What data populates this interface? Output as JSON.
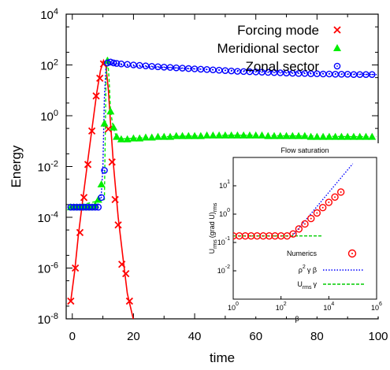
{
  "chart_data": [
    {
      "type": "line",
      "xlabel": "time",
      "ylabel": "Energy",
      "xlim": [
        -2,
        100
      ],
      "ylim": [
        1e-08,
        10000
      ],
      "yscale": "log",
      "grid": false,
      "legend_position": "top-right",
      "x_ticks": [
        "0",
        "20",
        "40",
        "60",
        "80",
        "100"
      ],
      "y_ticks": [
        "10",
        "10",
        "10",
        "10",
        "10",
        "10",
        "10"
      ],
      "y_tick_exponents": [
        "-8",
        "-6",
        "-4",
        "-2",
        "0",
        "2",
        "4"
      ],
      "series": [
        {
          "name": "Forcing mode",
          "color": "#ff0000",
          "marker": "x",
          "x": [
            -0.5,
            0.8,
            2,
            3.5,
            5,
            6.5,
            8,
            9.2,
            10.2,
            11,
            11.8,
            12.5,
            13.5,
            15,
            16.5,
            18,
            19,
            20.5
          ],
          "y": [
            5e-08,
            8e-07,
            2e-05,
            0.0006,
            0.015,
            0.35,
            8,
            60,
            150,
            90,
            10,
            0.5,
            0.01,
            0.0001,
            3e-06,
            1e-07,
            3e-08,
            5e-09
          ]
        },
        {
          "name": "Meridional sector",
          "color": "#00ee00",
          "marker": "triangle",
          "x": [
            -0.5,
            10.5,
            11,
            11.5,
            12,
            12.5,
            13.3,
            14,
            15,
            20,
            30,
            40,
            50,
            60,
            70,
            80,
            90,
            99.5
          ],
          "y": [
            0.00025,
            0.0005,
            20,
            200,
            30,
            1.5,
            0.4,
            0.2,
            0.12,
            0.13,
            0.15,
            0.16,
            0.17,
            0.17,
            0.16,
            0.16,
            0.15,
            0.15
          ]
        },
        {
          "name": "Zonal sector",
          "color": "#0000ff",
          "marker": "circle",
          "x": [
            -0.5,
            8,
            9.5,
            10,
            10.5,
            11,
            11.5,
            12,
            14,
            18,
            25,
            35,
            50,
            70,
            85,
            99.5
          ],
          "y": [
            0.00025,
            0.00025,
            0.0008,
            0.01,
            5,
            80,
            130,
            130,
            110,
            95,
            85,
            75,
            62,
            52,
            45,
            42
          ]
        }
      ],
      "markers": {
        "Forcing mode": {
          "x": [
            -0.5,
            1,
            2.5,
            3.8,
            5.1,
            6.4,
            7.8,
            9,
            10.2,
            11.8,
            13,
            14,
            15,
            16.2,
            17.5,
            18.7
          ],
          "y": [
            5e-08,
            1e-06,
            2.5e-05,
            0.0006,
            0.012,
            0.25,
            6,
            30,
            110,
            0.3,
            0.015,
            0.0005,
            5e-05,
            1.4e-06,
            6e-07,
            5e-08
          ]
        },
        "Meridional sector": {
          "x": [
            -0.5,
            0.5,
            1.5,
            2.5,
            3.5,
            4.5,
            5.5,
            6.5,
            7.5,
            8.5,
            9.5,
            10.5,
            11.5,
            12.5,
            13.5,
            14.5,
            16,
            18,
            20,
            22,
            24,
            26,
            28,
            30,
            32,
            34,
            36,
            38,
            40,
            42,
            44,
            46,
            48,
            50,
            52,
            54,
            56,
            58,
            60,
            62,
            64,
            66,
            68,
            70,
            72,
            74,
            76,
            78,
            80,
            82,
            84,
            86,
            88,
            90,
            92,
            94,
            96,
            98
          ],
          "y": [
            0.00025,
            0.00025,
            0.00025,
            0.00025,
            0.00025,
            0.00025,
            0.00025,
            0.00025,
            0.0003,
            0.0005,
            0.002,
            0.5,
            150,
            1.5,
            0.35,
            0.15,
            0.12,
            0.12,
            0.13,
            0.13,
            0.14,
            0.14,
            0.15,
            0.15,
            0.15,
            0.16,
            0.16,
            0.16,
            0.16,
            0.16,
            0.17,
            0.17,
            0.17,
            0.17,
            0.17,
            0.17,
            0.17,
            0.17,
            0.17,
            0.17,
            0.16,
            0.16,
            0.16,
            0.16,
            0.16,
            0.16,
            0.16,
            0.15,
            0.15,
            0.15,
            0.15,
            0.15,
            0.15,
            0.15,
            0.15,
            0.15,
            0.15,
            0.15
          ]
        },
        "Zonal sector": {
          "x": [
            -0.5,
            0.5,
            1.5,
            2.5,
            3.5,
            4.5,
            5.5,
            6.5,
            7.5,
            8.5,
            9.5,
            10.5,
            11.5,
            12.5,
            13.5,
            14.5,
            16,
            18,
            20,
            22,
            24,
            26,
            28,
            30,
            32,
            34,
            36,
            38,
            40,
            42,
            44,
            46,
            48,
            50,
            52,
            54,
            56,
            58,
            60,
            62,
            64,
            66,
            68,
            70,
            72,
            74,
            76,
            78,
            80,
            82,
            84,
            86,
            88,
            90,
            92,
            94,
            96,
            98
          ],
          "y": [
            0.00025,
            0.00025,
            0.00025,
            0.00025,
            0.00025,
            0.00025,
            0.00025,
            0.00025,
            0.00025,
            0.00025,
            0.0006,
            0.007,
            120,
            130,
            120,
            115,
            110,
            105,
            100,
            96,
            92,
            88,
            85,
            82,
            80,
            77,
            75,
            72,
            70,
            68,
            66,
            64,
            62,
            60,
            58,
            56,
            55,
            54,
            53,
            52,
            51,
            50,
            49,
            48,
            47,
            46,
            46,
            45,
            45,
            44,
            44,
            43,
            43,
            43,
            42,
            42,
            42,
            42
          ]
        }
      }
    },
    {
      "type": "line",
      "title": "Flow saturation",
      "xlabel": "β",
      "ylabel": "U_rms (grad U)_rms",
      "xscale": "log",
      "yscale": "log",
      "xlim": [
        1,
        1000000
      ],
      "ylim": [
        0.001,
        100
      ],
      "x_ticks": [
        "10",
        "10",
        "10",
        "10"
      ],
      "x_tick_exponents": [
        "0",
        "2",
        "4",
        "6"
      ],
      "y_ticks": [
        "10",
        "10",
        "10",
        "10"
      ],
      "y_tick_exponents": [
        "1",
        "0",
        "-1",
        "-2"
      ],
      "y_tick_values": [
        10,
        1,
        0.1,
        0.01
      ],
      "series": [
        {
          "name": "Numerics",
          "color": "#ff0000",
          "marker": "circle-dot",
          "x": [
            1,
            1.8,
            3.2,
            5.6,
            10,
            18,
            32,
            56,
            100,
            180,
            320,
            560,
            1000,
            1800,
            3200,
            5600,
            10000,
            18000,
            32000
          ],
          "y": [
            0.17,
            0.17,
            0.17,
            0.17,
            0.17,
            0.17,
            0.17,
            0.17,
            0.17,
            0.17,
            0.2,
            0.3,
            0.45,
            0.7,
            1.1,
            1.7,
            2.6,
            4,
            6
          ]
        },
        {
          "name": "ρ² γ β",
          "color": "#0000ff",
          "dash": "dot",
          "x": [
            300,
            100000
          ],
          "y": [
            0.17,
            60
          ]
        },
        {
          "name": "U_rms γ",
          "color": "#00cc00",
          "dash": "dash",
          "x": [
            1,
            5000
          ],
          "y": [
            0.17,
            0.17
          ]
        }
      ],
      "legend": {
        "numerics": "Numerics",
        "rho": "ρ",
        "rho_exp": "2",
        "gamma_beta": "γ β",
        "urms": "U",
        "urms_sub": "rms",
        "urms_gamma": "γ"
      },
      "ylabel_parts": {
        "u": "U",
        "u_sub": "rms",
        "grad": "(grad U)",
        "grad_sub": "rms"
      }
    }
  ]
}
